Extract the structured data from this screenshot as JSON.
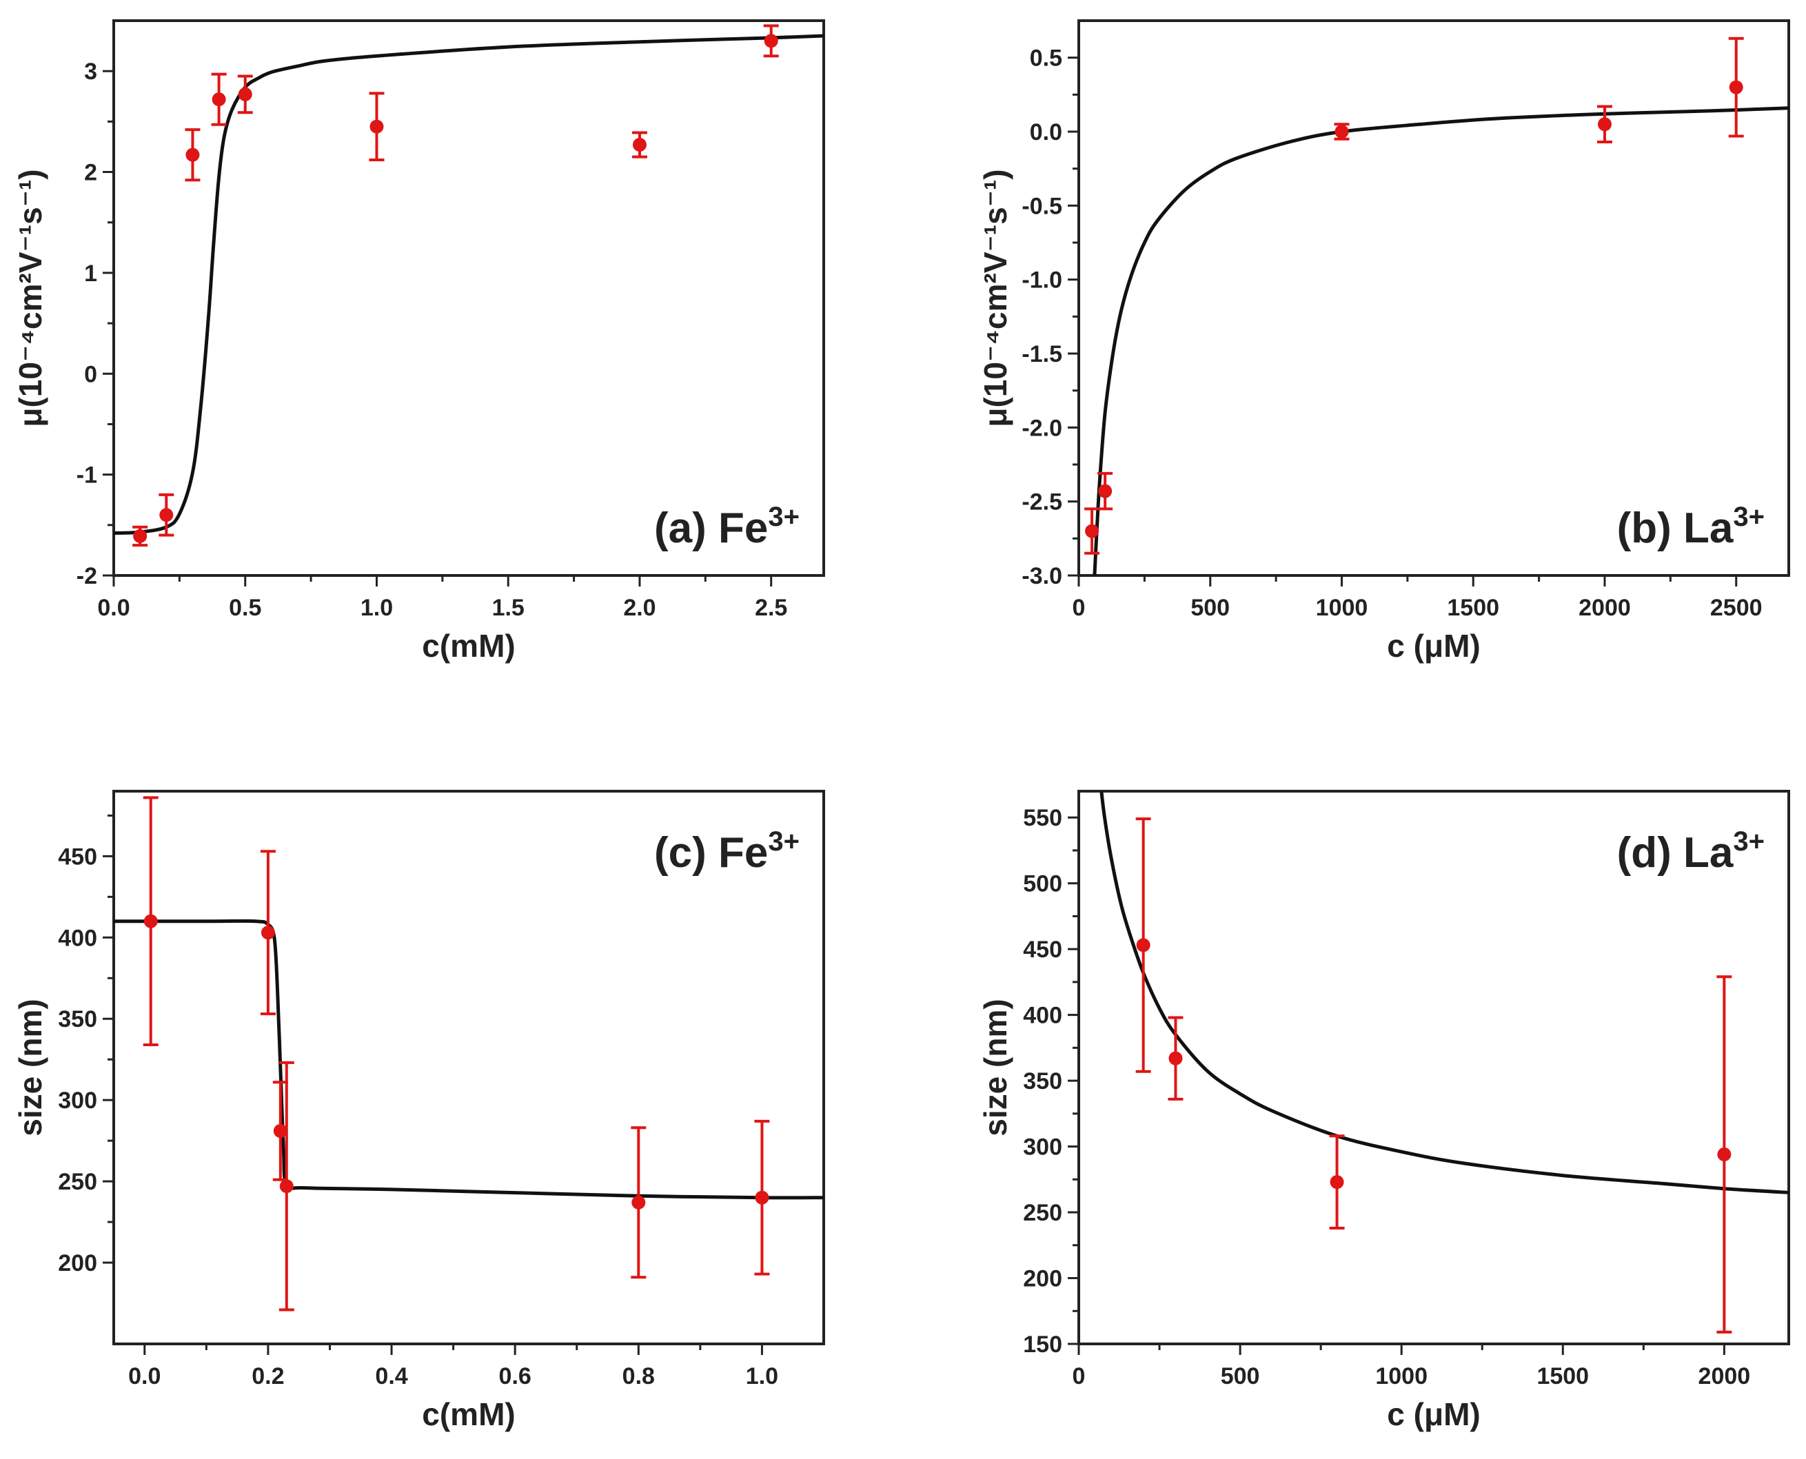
{
  "chart_data": [
    {
      "panel": "a",
      "type": "scatter",
      "title": "",
      "panel_label": "(a) Fe",
      "panel_label_sup": "3+",
      "xlabel": "c(mM)",
      "ylabel": "μ(10⁻⁴cm²V⁻¹s⁻¹)",
      "xlim": [
        0.0,
        2.7
      ],
      "ylim": [
        -2,
        3.5
      ],
      "xticks": [
        0.0,
        0.5,
        1.0,
        1.5,
        2.0,
        2.5
      ],
      "xtick_labels": [
        "0.0",
        "0.5",
        "1.0",
        "1.5",
        "2.0",
        "2.5"
      ],
      "yticks": [
        -2,
        -1,
        0,
        1,
        2,
        3
      ],
      "ytick_labels": [
        "-2",
        "-1",
        "0",
        "1",
        "2",
        "3"
      ],
      "series": [
        {
          "name": "data",
          "x": [
            0.1,
            0.2,
            0.3,
            0.4,
            0.5,
            1.0,
            2.0,
            2.5
          ],
          "y": [
            -1.61,
            -1.4,
            2.17,
            2.72,
            2.77,
            2.45,
            2.27,
            3.3
          ],
          "err": [
            0.09,
            0.2,
            0.25,
            0.25,
            0.18,
            0.33,
            0.12,
            0.15
          ]
        },
        {
          "name": "fit",
          "x": [
            0.0,
            0.1,
            0.2,
            0.25,
            0.3,
            0.33,
            0.36,
            0.38,
            0.4,
            0.42,
            0.45,
            0.5,
            0.55,
            0.6,
            0.7,
            0.8,
            1.0,
            1.5,
            2.0,
            2.5,
            2.7
          ],
          "y": [
            -1.58,
            -1.57,
            -1.52,
            -1.39,
            -0.98,
            -0.35,
            0.55,
            1.3,
            1.95,
            2.35,
            2.62,
            2.84,
            2.93,
            2.99,
            3.05,
            3.1,
            3.15,
            3.24,
            3.29,
            3.33,
            3.35
          ]
        }
      ]
    },
    {
      "panel": "b",
      "type": "scatter",
      "title": "",
      "panel_label": "(b) La",
      "panel_label_sup": "3+",
      "xlabel": "c (μM)",
      "ylabel": "μ(10⁻⁴cm²V⁻¹s⁻¹)",
      "xlim": [
        0,
        2700
      ],
      "ylim": [
        -3.0,
        0.75
      ],
      "xticks": [
        0,
        500,
        1000,
        1500,
        2000,
        2500
      ],
      "xtick_labels": [
        "0",
        "500",
        "1000",
        "1500",
        "2000",
        "2500"
      ],
      "yticks": [
        -3.0,
        -2.5,
        -2.0,
        -1.5,
        -1.0,
        -0.5,
        0.0,
        0.5
      ],
      "ytick_labels": [
        "-3.0",
        "-2.5",
        "-2.0",
        "-1.5",
        "-1.0",
        "-0.5",
        "0.0",
        "0.5"
      ],
      "series": [
        {
          "name": "data",
          "x": [
            50,
            100,
            1000,
            2000,
            2500
          ],
          "y": [
            -2.7,
            -2.43,
            0.0,
            0.05,
            0.3
          ],
          "err": [
            0.15,
            0.12,
            0.05,
            0.12,
            0.33
          ]
        },
        {
          "name": "fit",
          "x": [
            60,
            70,
            80,
            100,
            130,
            160,
            200,
            250,
            300,
            400,
            500,
            600,
            800,
            1000,
            1300,
            1600,
            2000,
            2400,
            2700
          ],
          "y": [
            -3.0,
            -2.65,
            -2.35,
            -1.9,
            -1.5,
            -1.22,
            -0.97,
            -0.75,
            -0.6,
            -0.4,
            -0.27,
            -0.18,
            -0.07,
            0.0,
            0.05,
            0.09,
            0.12,
            0.14,
            0.16
          ]
        }
      ]
    },
    {
      "panel": "c",
      "type": "scatter",
      "title": "",
      "panel_label": "(c) Fe",
      "panel_label_sup": "3+",
      "xlabel": "c(mM)",
      "ylabel": "size (nm)",
      "xlim": [
        -0.05,
        1.1
      ],
      "ylim": [
        150,
        490
      ],
      "xticks": [
        0.0,
        0.2,
        0.4,
        0.6,
        0.8,
        1.0
      ],
      "xtick_labels": [
        "0.0",
        "0.2",
        "0.4",
        "0.6",
        "0.8",
        "1.0"
      ],
      "yticks": [
        200,
        250,
        300,
        350,
        400,
        450
      ],
      "ytick_labels": [
        "200",
        "250",
        "300",
        "350",
        "400",
        "450"
      ],
      "series": [
        {
          "name": "data",
          "x": [
            0.01,
            0.2,
            0.22,
            0.23,
            0.8,
            1.0
          ],
          "y": [
            410,
            403,
            281,
            247,
            237,
            240
          ],
          "err": [
            76,
            50,
            30,
            76,
            46,
            47
          ]
        },
        {
          "name": "fit",
          "x": [
            -0.05,
            0.1,
            0.18,
            0.2,
            0.21,
            0.215,
            0.22,
            0.225,
            0.23,
            0.26,
            0.4,
            0.6,
            0.8,
            1.0,
            1.1
          ],
          "y": [
            410,
            410,
            410,
            408,
            400,
            370,
            320,
            270,
            248,
            246,
            245,
            243,
            241,
            240,
            240
          ]
        }
      ]
    },
    {
      "panel": "d",
      "type": "scatter",
      "title": "",
      "panel_label": "(d) La",
      "panel_label_sup": "3+",
      "xlabel": "c (μM)",
      "ylabel": "size (nm)",
      "xlim": [
        0,
        2200
      ],
      "ylim": [
        150,
        570
      ],
      "xticks": [
        0,
        500,
        1000,
        1500,
        2000
      ],
      "xtick_labels": [
        "0",
        "500",
        "1000",
        "1500",
        "2000"
      ],
      "yticks": [
        150,
        200,
        250,
        300,
        350,
        400,
        450,
        500,
        550
      ],
      "ytick_labels": [
        "150",
        "200",
        "250",
        "300",
        "350",
        "400",
        "450",
        "500",
        "550"
      ],
      "series": [
        {
          "name": "data",
          "x": [
            200,
            300,
            800,
            2000
          ],
          "y": [
            453,
            367,
            273,
            294
          ],
          "err": [
            96,
            31,
            35,
            135
          ]
        },
        {
          "name": "fit",
          "x": [
            70,
            80,
            100,
            130,
            160,
            200,
            250,
            300,
            400,
            500,
            600,
            800,
            1000,
            1200,
            1500,
            1800,
            2000,
            2200
          ],
          "y": [
            570,
            550,
            520,
            485,
            460,
            432,
            405,
            385,
            357,
            340,
            327,
            308,
            296,
            287,
            278,
            272,
            268,
            265
          ]
        }
      ]
    }
  ]
}
